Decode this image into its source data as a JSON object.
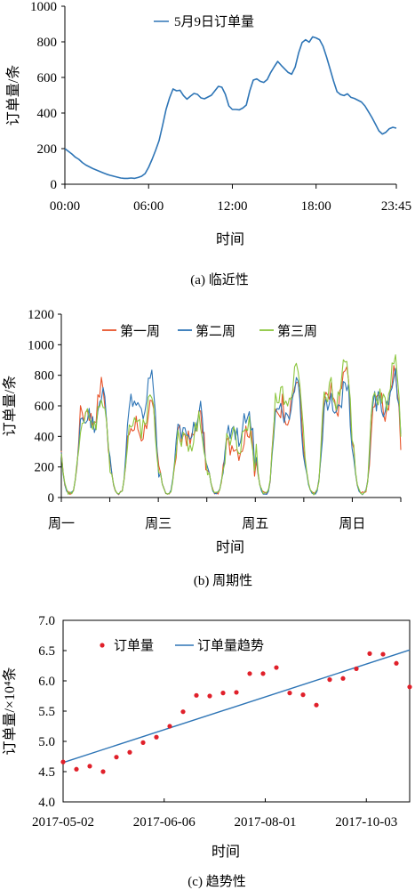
{
  "chart_data": [
    {
      "type": "line",
      "caption": "(a) 临近性",
      "xlabel": "时间",
      "ylabel": "订单量/条",
      "ylim": [
        0,
        1000
      ],
      "yticks": [
        "0",
        "200",
        "400",
        "600",
        "800",
        "1000"
      ],
      "xlim": [
        0,
        95
      ],
      "xticks": [
        {
          "x": 0,
          "label": "00:00"
        },
        {
          "x": 24,
          "label": "06:00"
        },
        {
          "x": 48,
          "label": "12:00"
        },
        {
          "x": 72,
          "label": "18:00"
        },
        {
          "x": 95,
          "label": "23:45"
        }
      ],
      "legend": "top-left",
      "series": [
        {
          "name": "5月9日订单量",
          "color": "#2E75B6",
          "values": [
            200,
            185,
            170,
            152,
            140,
            122,
            108,
            98,
            88,
            80,
            72,
            64,
            56,
            50,
            45,
            40,
            35,
            33,
            33,
            35,
            33,
            38,
            45,
            60,
            95,
            140,
            190,
            245,
            330,
            420,
            485,
            535,
            525,
            528,
            498,
            478,
            495,
            510,
            505,
            485,
            480,
            490,
            500,
            525,
            550,
            545,
            505,
            440,
            420,
            420,
            418,
            428,
            445,
            525,
            585,
            592,
            578,
            572,
            588,
            628,
            660,
            690,
            668,
            648,
            628,
            618,
            658,
            738,
            796,
            812,
            798,
            828,
            822,
            812,
            775,
            715,
            648,
            580,
            520,
            504,
            498,
            508,
            488,
            482,
            472,
            462,
            440,
            408,
            375,
            338,
            300,
            282,
            292,
            312,
            320,
            315
          ]
        }
      ]
    },
    {
      "type": "line",
      "caption": "(b) 周期性",
      "xlabel": "时间",
      "ylabel": "订单量/条",
      "ylim": [
        0,
        1200
      ],
      "yticks": [
        "0",
        "200",
        "400",
        "600",
        "800",
        "1000",
        "1200"
      ],
      "xticks": [
        "周一",
        "周三",
        "周五",
        "周日"
      ],
      "legend": "top",
      "series": [
        {
          "name": "第一周",
          "color": "#E8542A"
        },
        {
          "name": "第二周",
          "color": "#2E75B6"
        },
        {
          "name": "第三周",
          "color": "#8DC63F"
        }
      ]
    },
    {
      "type": "scatter",
      "caption": "(c) 趋势性",
      "xlabel": "时间",
      "ylabel": "订单量/×10⁴条",
      "ylim": [
        4.0,
        7.0
      ],
      "yticks": [
        "4.0",
        "4.5",
        "5.0",
        "5.5",
        "6.0",
        "6.5",
        "7.0"
      ],
      "xlim": [
        0,
        24
      ],
      "xticks": [
        {
          "x": 0,
          "label": "2017-05-02"
        },
        {
          "x": 7,
          "label": "2017-06-06"
        },
        {
          "x": 14,
          "label": "2017-08-01"
        },
        {
          "x": 21,
          "label": "2017-10-03"
        }
      ],
      "legend": "top-left",
      "series": [
        {
          "name": "订单量",
          "color": "#E0202A",
          "values": [
            4.66,
            4.54,
            4.59,
            4.5,
            4.74,
            4.82,
            4.98,
            5.07,
            5.25,
            5.49,
            5.76,
            5.75,
            5.8,
            5.81,
            6.12,
            6.12,
            6.22,
            5.8,
            5.77,
            5.6,
            6.02,
            6.04,
            6.2,
            6.45,
            6.44,
            6.29,
            5.9
          ]
        },
        {
          "name": "订单量趋势",
          "color": "#2E75B6",
          "trend": [
            4.65,
            6.51
          ]
        }
      ]
    }
  ]
}
